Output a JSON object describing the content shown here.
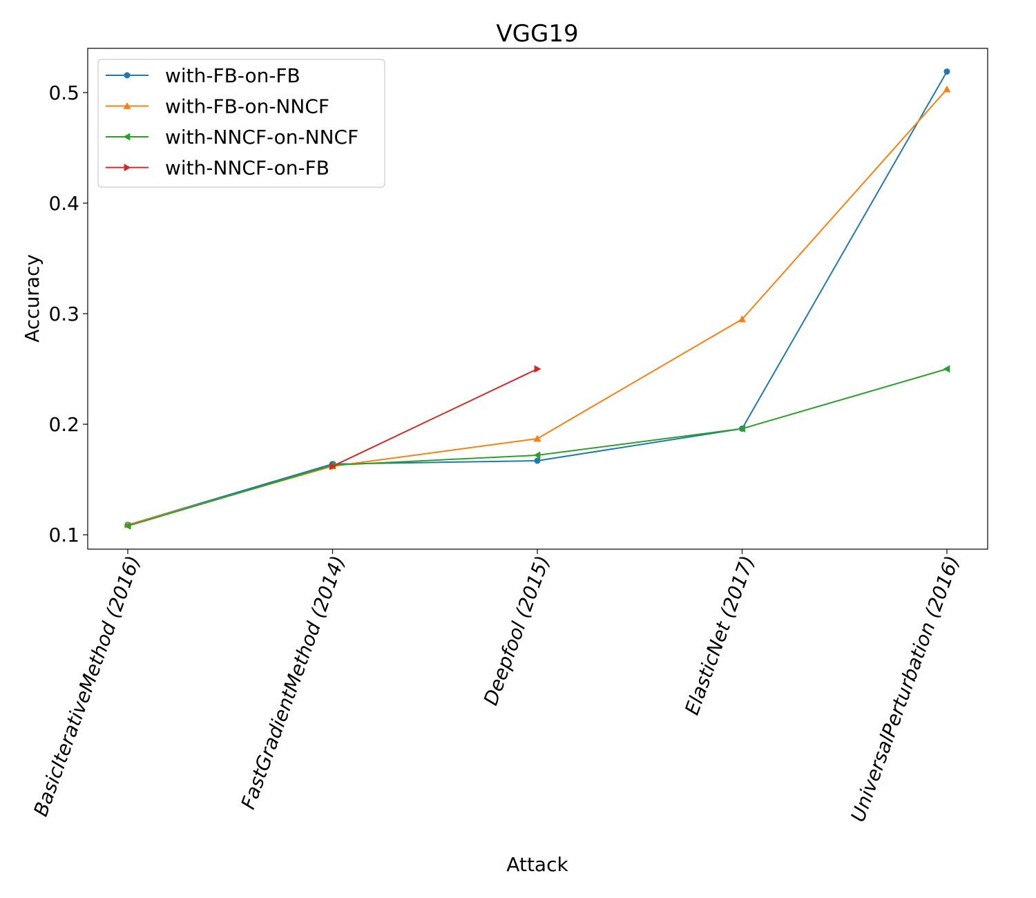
{
  "chart_data": {
    "type": "line",
    "title": "VGG19",
    "xlabel": "Attack",
    "ylabel": "Accuracy",
    "categories": [
      "BasicIterativeMethod (2016)",
      "FastGradientMethod (2014)",
      "Deepfool (2015)",
      "ElasticNet (2017)",
      "UniversalPerturbation (2016)"
    ],
    "ylim": [
      0.087,
      0.54
    ],
    "yticks": [
      "0.1",
      "0.2",
      "0.3",
      "0.4",
      "0.5"
    ],
    "grid": false,
    "legend_position": "top-left",
    "series": [
      {
        "name": "with-FB-on-FB",
        "color": "#1f77b4",
        "marker": "circle",
        "values": [
          0.109,
          0.164,
          0.167,
          0.196,
          0.519
        ]
      },
      {
        "name": "with-FB-on-NNCF",
        "color": "#ff7f0e",
        "marker": "triangle-up",
        "values": [
          0.109,
          0.162,
          0.187,
          0.295,
          0.503
        ]
      },
      {
        "name": "with-NNCF-on-NNCF",
        "color": "#2ca02c",
        "marker": "triangle-left",
        "values": [
          0.108,
          0.163,
          0.172,
          0.196,
          0.25
        ]
      },
      {
        "name": "with-NNCF-on-FB",
        "color": "#d62728",
        "marker": "triangle-right",
        "values": [
          null,
          0.162,
          0.25,
          null,
          null
        ]
      }
    ]
  }
}
